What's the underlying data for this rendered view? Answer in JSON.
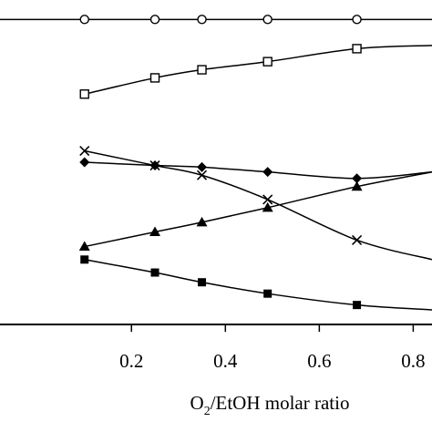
{
  "chart_data": {
    "type": "line",
    "xlabel_main": "O",
    "xlabel_sub": "2",
    "xlabel_rest": "/EtOH molar ratio",
    "xlim": [
      -0.08,
      0.84
    ],
    "ylim": [
      0,
      10
    ],
    "x_ticks": [
      {
        "value": 0.2,
        "label": "0.2"
      },
      {
        "value": 0.4,
        "label": "0.4"
      },
      {
        "value": 0.6,
        "label": "0.6"
      },
      {
        "value": 0.8,
        "label": "0.8"
      }
    ],
    "grid": false,
    "series": [
      {
        "marker": "circle-open",
        "x": [
          0.1,
          0.25,
          0.35,
          0.49,
          0.68
        ],
        "y": [
          9.4,
          9.4,
          9.4,
          9.4,
          9.4
        ]
      },
      {
        "marker": "square-open",
        "x": [
          0.1,
          0.25,
          0.35,
          0.49,
          0.68
        ],
        "y": [
          7.1,
          7.6,
          7.85,
          8.1,
          8.5
        ]
      },
      {
        "marker": "diamond-filled",
        "x": [
          0.1,
          0.25,
          0.35,
          0.49,
          0.68
        ],
        "y": [
          5.0,
          4.9,
          4.85,
          4.7,
          4.5
        ]
      },
      {
        "marker": "cross",
        "x": [
          0.1,
          0.25,
          0.35,
          0.49,
          0.68
        ],
        "y": [
          5.35,
          4.9,
          4.6,
          3.85,
          2.6
        ]
      },
      {
        "marker": "triangle-filled",
        "x": [
          0.1,
          0.25,
          0.35,
          0.49,
          0.68
        ],
        "y": [
          2.4,
          2.85,
          3.15,
          3.6,
          4.25
        ]
      },
      {
        "marker": "square-filled",
        "x": [
          0.1,
          0.25,
          0.35,
          0.49,
          0.68
        ],
        "y": [
          2.0,
          1.6,
          1.3,
          0.95,
          0.6
        ]
      }
    ],
    "curve_extension_at_right_edge": [
      9.4,
      8.6,
      4.7,
      2.0,
      4.7,
      0.45
    ]
  }
}
